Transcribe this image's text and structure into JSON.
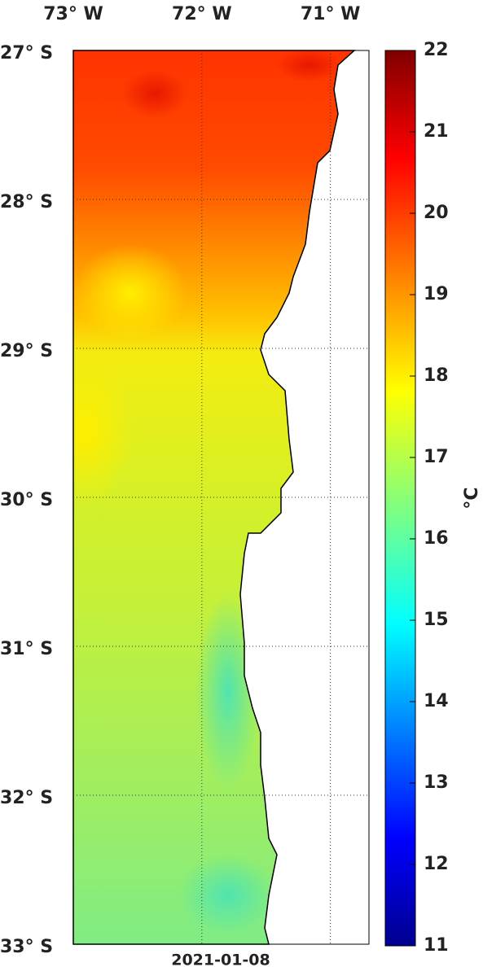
{
  "map": {
    "date": "2021-01-08",
    "lonlim": [
      -73,
      -70.7
    ],
    "latlim": [
      -27,
      -33
    ],
    "lon_ticks": [
      {
        "value": -73,
        "label": "73° W"
      },
      {
        "value": -72,
        "label": "72° W"
      },
      {
        "value": -71,
        "label": "71° W"
      }
    ],
    "lat_ticks": [
      {
        "value": -27,
        "label": "27° S"
      },
      {
        "value": -28,
        "label": "28° S"
      },
      {
        "value": -29,
        "label": "29° S"
      },
      {
        "value": -30,
        "label": "30° S"
      },
      {
        "value": -31,
        "label": "31° S"
      },
      {
        "value": -32,
        "label": "32° S"
      },
      {
        "value": -33,
        "label": "33° S"
      }
    ],
    "grid": true,
    "colorbar": {
      "label": "°C",
      "lim": [
        11,
        22
      ],
      "ticks": [
        11,
        12,
        13,
        14,
        15,
        16,
        17,
        18,
        19,
        20,
        21,
        22
      ]
    }
  }
}
